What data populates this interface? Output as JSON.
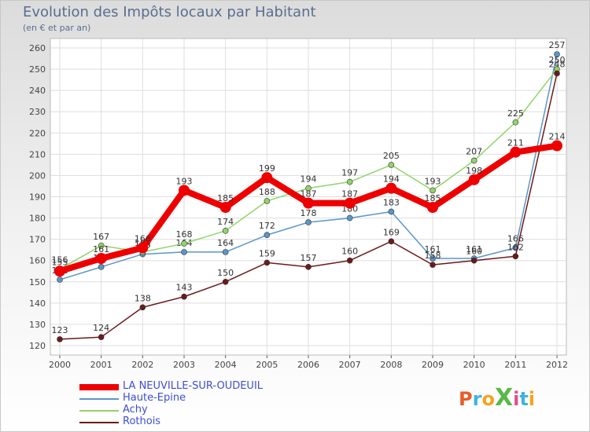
{
  "header": {
    "title": "Evolution des Impôts locaux par Habitant",
    "subtitle": "(en € et par an)"
  },
  "logo": {
    "text": "ProXiti",
    "colors": [
      "#e95c2b",
      "#3db3e3",
      "#f4a51c",
      "#5ab84a",
      "#e24e8b",
      "#3db3e3",
      "#f4a51c"
    ]
  },
  "colors": {
    "title": "#5a6e8f",
    "legend_text": "#3f4fd0",
    "axis": "#555555",
    "grid": "#dedede"
  },
  "chart_data": {
    "type": "line",
    "title": "Evolution des Impôts locaux par Habitant",
    "subtitle": "(en € et par an)",
    "xlabel": "",
    "ylabel": "",
    "categories": [
      "2000",
      "2001",
      "2002",
      "2003",
      "2004",
      "2005",
      "2006",
      "2007",
      "2008",
      "2009",
      "2010",
      "2011",
      "2012"
    ],
    "ylim": [
      120,
      260
    ],
    "yticks": [
      120,
      130,
      140,
      150,
      160,
      170,
      180,
      190,
      200,
      210,
      220,
      230,
      240,
      250,
      260
    ],
    "grid": true,
    "legend_position": "bottom-left",
    "series": [
      {
        "name": "LA NEUVILLE-SUR-OUDEUIL",
        "color": "#ee0000",
        "style": "thick",
        "values": [
          155,
          161,
          166,
          193,
          185,
          199,
          187,
          187,
          194,
          185,
          198,
          211,
          214
        ]
      },
      {
        "name": "Haute-Epine",
        "color": "#5b96c9",
        "style": "thin",
        "values": [
          151,
          157,
          163,
          164,
          164,
          172,
          178,
          180,
          183,
          161,
          161,
          166,
          257
        ]
      },
      {
        "name": "Achy",
        "color": "#92d36a",
        "style": "thin",
        "values": [
          156,
          167,
          164,
          168,
          174,
          188,
          194,
          197,
          205,
          193,
          207,
          225,
          250
        ]
      },
      {
        "name": "Rothois",
        "color": "#6b1a1a",
        "style": "thin",
        "values": [
          123,
          124,
          138,
          143,
          150,
          159,
          157,
          160,
          169,
          158,
          160,
          162,
          248
        ]
      }
    ]
  }
}
